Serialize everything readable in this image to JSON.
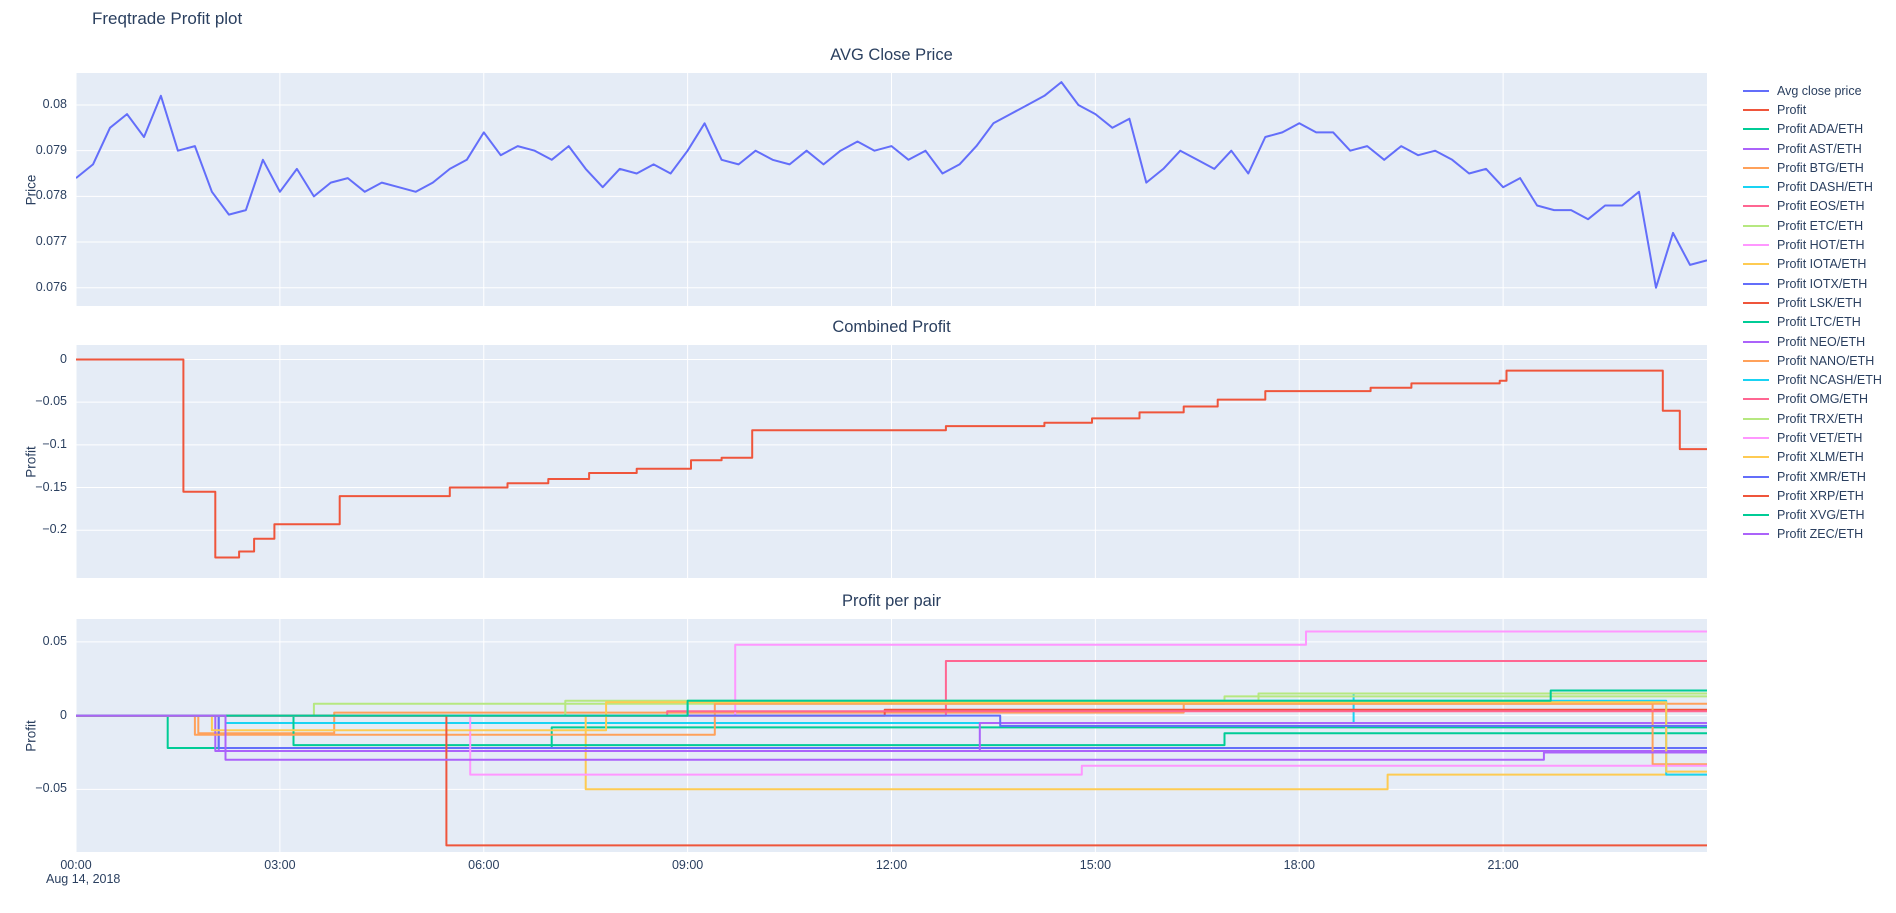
{
  "page": {
    "title": "Freqtrade Profit plot",
    "background": "#ffffff",
    "plot_background": "#e5ecf6",
    "grid_color": "#ffffff",
    "text_color": "#2a3f5f"
  },
  "xaxis": {
    "range": [
      0,
      24
    ],
    "ticks": [
      0,
      3,
      6,
      9,
      12,
      15,
      18,
      21
    ],
    "labels": [
      "00:00",
      "03:00",
      "06:00",
      "09:00",
      "12:00",
      "15:00",
      "18:00",
      "21:00"
    ],
    "date_label": "Aug 14, 2018"
  },
  "legend": {
    "position": "right",
    "items": [
      {
        "label": "Avg close price",
        "color": "#636EFA"
      },
      {
        "label": "Profit",
        "color": "#EF553B"
      },
      {
        "label": "Profit ADA/ETH",
        "color": "#00CC96"
      },
      {
        "label": "Profit AST/ETH",
        "color": "#AB63FA"
      },
      {
        "label": "Profit BTG/ETH",
        "color": "#FFA15A"
      },
      {
        "label": "Profit DASH/ETH",
        "color": "#19D3F3"
      },
      {
        "label": "Profit EOS/ETH",
        "color": "#FF6692"
      },
      {
        "label": "Profit ETC/ETH",
        "color": "#B6E880"
      },
      {
        "label": "Profit HOT/ETH",
        "color": "#FF97FF"
      },
      {
        "label": "Profit IOTA/ETH",
        "color": "#FECB52"
      },
      {
        "label": "Profit IOTX/ETH",
        "color": "#636EFA"
      },
      {
        "label": "Profit LSK/ETH",
        "color": "#EF553B"
      },
      {
        "label": "Profit LTC/ETH",
        "color": "#00CC96"
      },
      {
        "label": "Profit NEO/ETH",
        "color": "#AB63FA"
      },
      {
        "label": "Profit NANO/ETH",
        "color": "#FFA15A"
      },
      {
        "label": "Profit NCASH/ETH",
        "color": "#19D3F3"
      },
      {
        "label": "Profit OMG/ETH",
        "color": "#FF6692"
      },
      {
        "label": "Profit TRX/ETH",
        "color": "#B6E880"
      },
      {
        "label": "Profit VET/ETH",
        "color": "#FF97FF"
      },
      {
        "label": "Profit XLM/ETH",
        "color": "#FECB52"
      },
      {
        "label": "Profit XMR/ETH",
        "color": "#636EFA"
      },
      {
        "label": "Profit XRP/ETH",
        "color": "#EF553B"
      },
      {
        "label": "Profit XVG/ETH",
        "color": "#00CC96"
      },
      {
        "label": "Profit ZEC/ETH",
        "color": "#AB63FA"
      }
    ]
  },
  "chart_data": [
    {
      "id": "price",
      "type": "line",
      "title": "AVG Close Price",
      "ylabel": "Price",
      "ylim": [
        0.0756,
        0.0807
      ],
      "yticks": [
        0.076,
        0.077,
        0.078,
        0.079,
        0.08
      ],
      "ytick_labels": [
        "0.076",
        "0.077",
        "0.078",
        "0.079",
        "0.08"
      ],
      "grid": true,
      "series": [
        {
          "name": "Avg close price",
          "color": "#636EFA",
          "mode": "linear",
          "x_start": 0,
          "x_step": 0.25,
          "y": [
            0.0784,
            0.0787,
            0.0795,
            0.0798,
            0.0793,
            0.0802,
            0.079,
            0.0791,
            0.0781,
            0.0776,
            0.0777,
            0.0788,
            0.0781,
            0.0786,
            0.078,
            0.0783,
            0.0784,
            0.0781,
            0.0783,
            0.0782,
            0.0781,
            0.0783,
            0.0786,
            0.0788,
            0.0794,
            0.0789,
            0.0791,
            0.079,
            0.0788,
            0.0791,
            0.0786,
            0.0782,
            0.0786,
            0.0785,
            0.0787,
            0.0785,
            0.079,
            0.0796,
            0.0788,
            0.0787,
            0.079,
            0.0788,
            0.0787,
            0.079,
            0.0787,
            0.079,
            0.0792,
            0.079,
            0.0791,
            0.0788,
            0.079,
            0.0785,
            0.0787,
            0.0791,
            0.0796,
            0.0798,
            0.08,
            0.0802,
            0.0805,
            0.08,
            0.0798,
            0.0795,
            0.0797,
            0.0783,
            0.0786,
            0.079,
            0.0788,
            0.0786,
            0.079,
            0.0785,
            0.0793,
            0.0794,
            0.0796,
            0.0794,
            0.0794,
            0.079,
            0.0791,
            0.0788,
            0.0791,
            0.0789,
            0.079,
            0.0788,
            0.0785,
            0.0786,
            0.0782,
            0.0784,
            0.0778,
            0.0777,
            0.0777,
            0.0775,
            0.0778,
            0.0778,
            0.0781,
            0.076,
            0.0772,
            0.0765,
            0.0766
          ]
        }
      ]
    },
    {
      "id": "combined",
      "type": "line",
      "title": "Combined Profit",
      "ylabel": "Profit",
      "ylim": [
        -0.256,
        0.017
      ],
      "yticks": [
        0,
        -0.05,
        -0.1,
        -0.15,
        -0.2
      ],
      "ytick_labels": [
        "0",
        "−0.05",
        "−0.1",
        "−0.15",
        "−0.2"
      ],
      "grid": true,
      "series": [
        {
          "name": "Profit",
          "color": "#EF553B",
          "mode": "steps",
          "x": [
            0,
            1.58,
            2.05,
            2.4,
            2.62,
            2.92,
            3.88,
            5.5,
            6.35,
            6.95,
            7.55,
            8.25,
            9.05,
            9.5,
            9.95,
            12.8,
            14.25,
            14.95,
            15.65,
            16.3,
            16.8,
            17.5,
            19.05,
            19.65,
            20.95,
            21.05,
            23.35,
            23.6,
            24
          ],
          "y": [
            0,
            -0.155,
            -0.232,
            -0.225,
            -0.21,
            -0.193,
            -0.16,
            -0.15,
            -0.145,
            -0.14,
            -0.133,
            -0.128,
            -0.118,
            -0.115,
            -0.083,
            -0.078,
            -0.074,
            -0.069,
            -0.062,
            -0.055,
            -0.047,
            -0.037,
            -0.033,
            -0.028,
            -0.025,
            -0.013,
            -0.06,
            -0.105,
            -0.105
          ]
        }
      ]
    },
    {
      "id": "pairs",
      "type": "line",
      "title": "Profit per pair",
      "ylabel": "Profit",
      "ylim": [
        -0.0925,
        0.0655
      ],
      "yticks": [
        0.05,
        0,
        -0.05
      ],
      "ytick_labels": [
        "0.05",
        "0",
        "−0.05"
      ],
      "grid": true,
      "series": [
        {
          "name": "Profit ADA/ETH",
          "color": "#00CC96",
          "mode": "steps",
          "x": [
            0,
            1.35,
            7.0,
            24
          ],
          "y": [
            0,
            -0.022,
            -0.008,
            -0.008
          ]
        },
        {
          "name": "Profit AST/ETH",
          "color": "#AB63FA",
          "mode": "steps",
          "x": [
            0,
            2.1,
            24
          ],
          "y": [
            0,
            -0.024,
            -0.024
          ]
        },
        {
          "name": "Profit BTG/ETH",
          "color": "#FFA15A",
          "mode": "steps",
          "x": [
            0,
            1.8,
            3.8,
            16.3,
            24
          ],
          "y": [
            0,
            -0.012,
            0.002,
            0.008,
            0.008
          ]
        },
        {
          "name": "Profit DASH/ETH",
          "color": "#19D3F3",
          "mode": "steps",
          "x": [
            0,
            2.2,
            18.8,
            24
          ],
          "y": [
            0,
            -0.005,
            0.015,
            0.015
          ]
        },
        {
          "name": "Profit EOS/ETH",
          "color": "#FF6692",
          "mode": "steps",
          "x": [
            0,
            12.8,
            24
          ],
          "y": [
            0,
            0.037,
            0.037
          ]
        },
        {
          "name": "Profit ETC/ETH",
          "color": "#B6E880",
          "mode": "steps",
          "x": [
            0,
            3.5,
            16.9,
            24
          ],
          "y": [
            0,
            0.008,
            0.013,
            0.013
          ]
        },
        {
          "name": "Profit HOT/ETH",
          "color": "#FF97FF",
          "mode": "steps",
          "x": [
            0,
            9.7,
            18.1,
            24
          ],
          "y": [
            0,
            0.048,
            0.057,
            0.057
          ]
        },
        {
          "name": "Profit IOTA/ETH",
          "color": "#FECB52",
          "mode": "steps",
          "x": [
            0,
            7.5,
            19.3,
            24
          ],
          "y": [
            0,
            -0.05,
            -0.04,
            -0.04
          ]
        },
        {
          "name": "Profit IOTX/ETH",
          "color": "#636EFA",
          "mode": "steps",
          "x": [
            0,
            2.1,
            24
          ],
          "y": [
            0,
            -0.022,
            -0.022
          ]
        },
        {
          "name": "Profit LSK/ETH",
          "color": "#EF553B",
          "mode": "steps",
          "x": [
            0,
            11.9,
            24
          ],
          "y": [
            0,
            0.004,
            0.004
          ]
        },
        {
          "name": "Profit LTC/ETH",
          "color": "#00CC96",
          "mode": "steps",
          "x": [
            0,
            3.2,
            16.9,
            24
          ],
          "y": [
            0,
            -0.02,
            -0.012,
            -0.012
          ]
        },
        {
          "name": "Profit NEO/ETH",
          "color": "#AB63FA",
          "mode": "steps",
          "x": [
            0,
            2.05,
            13.3,
            24
          ],
          "y": [
            0,
            -0.024,
            -0.005,
            -0.005
          ]
        },
        {
          "name": "Profit NANO/ETH",
          "color": "#FFA15A",
          "mode": "steps",
          "x": [
            0,
            1.75,
            9.4,
            23.2,
            24
          ],
          "y": [
            0,
            -0.013,
            0.008,
            -0.033,
            -0.033
          ]
        },
        {
          "name": "Profit NCASH/ETH",
          "color": "#19D3F3",
          "mode": "steps",
          "x": [
            0,
            9.0,
            23.4,
            24
          ],
          "y": [
            0,
            0.01,
            -0.04,
            -0.04
          ]
        },
        {
          "name": "Profit OMG/ETH",
          "color": "#FF6692",
          "mode": "steps",
          "x": [
            0,
            8.7,
            24
          ],
          "y": [
            0,
            0.003,
            0.003
          ]
        },
        {
          "name": "Profit TRX/ETH",
          "color": "#B6E880",
          "mode": "steps",
          "x": [
            0,
            7.2,
            17.4,
            24
          ],
          "y": [
            0,
            0.01,
            0.015,
            0.015
          ]
        },
        {
          "name": "Profit VET/ETH",
          "color": "#FF97FF",
          "mode": "steps",
          "x": [
            0,
            5.8,
            14.8,
            24
          ],
          "y": [
            0,
            -0.04,
            -0.034,
            -0.034
          ]
        },
        {
          "name": "Profit XLM/ETH",
          "color": "#FECB52",
          "mode": "steps",
          "x": [
            0,
            2.0,
            7.8,
            23.4,
            24
          ],
          "y": [
            0,
            -0.01,
            0.009,
            -0.038,
            -0.038
          ]
        },
        {
          "name": "Profit XMR/ETH",
          "color": "#636EFA",
          "mode": "steps",
          "x": [
            0,
            13.6,
            24
          ],
          "y": [
            0,
            -0.007,
            -0.007
          ]
        },
        {
          "name": "Profit XRP/ETH",
          "color": "#EF553B",
          "mode": "steps",
          "x": [
            0,
            5.45,
            24
          ],
          "y": [
            0,
            -0.088,
            -0.088
          ]
        },
        {
          "name": "Profit XVG/ETH",
          "color": "#00CC96",
          "mode": "steps",
          "x": [
            0,
            9.0,
            21.7,
            24
          ],
          "y": [
            0,
            0.01,
            0.017,
            0.017
          ]
        },
        {
          "name": "Profit ZEC/ETH",
          "color": "#AB63FA",
          "mode": "steps",
          "x": [
            0,
            2.2,
            21.6,
            24
          ],
          "y": [
            0,
            -0.03,
            -0.025,
            -0.025
          ]
        }
      ]
    }
  ]
}
